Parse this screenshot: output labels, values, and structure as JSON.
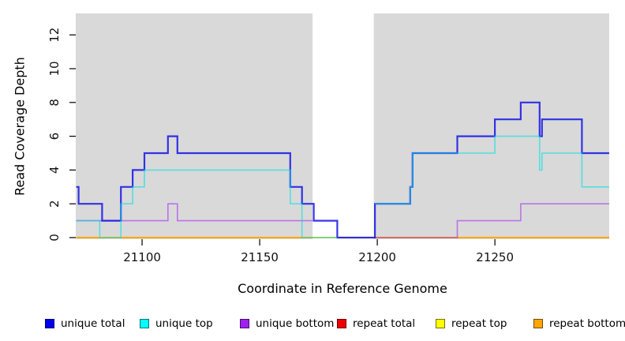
{
  "figure": {
    "x_axis_title": "Coordinate in Reference Genome",
    "y_axis_title": "Read Coverage Depth"
  },
  "legend": {
    "items": [
      {
        "label": "unique total",
        "color": "#0000EE"
      },
      {
        "label": "unique top",
        "color": "#00FFFF"
      },
      {
        "label": "unique bottom",
        "color": "#A020F0"
      },
      {
        "label": "repeat total",
        "color": "#EE0000"
      },
      {
        "label": "repeat top",
        "color": "#FFFF00"
      },
      {
        "label": "repeat bottom",
        "color": "#FFA500"
      }
    ]
  },
  "chart_data": {
    "type": "line",
    "subtype": "step-coverage",
    "title": "",
    "xlabel": "Coordinate in Reference Genome",
    "ylabel": "Read Coverage Depth",
    "xlim": [
      21071.8,
      21298.6
    ],
    "ylim": [
      0,
      13.3
    ],
    "x_ticks": [
      21100,
      21150,
      21200,
      21250
    ],
    "y_ticks": [
      0,
      2,
      4,
      6,
      8,
      10,
      12
    ],
    "grid": false,
    "legend_position": "bottom",
    "panel_color": "#D9D9D9",
    "shaded_regions": [
      {
        "name": "repeat-region-left",
        "from": 21071.8,
        "to": 21172.5
      },
      {
        "name": "repeat-region-right",
        "from": 21198.5,
        "to": 21298.6
      }
    ],
    "series": [
      {
        "key": "repeat_total",
        "name": "repeat total",
        "color": "#DD0000",
        "width": 1.5,
        "opacity": 1,
        "steps": [
          [
            21072,
            0
          ],
          [
            21299,
            0
          ]
        ]
      },
      {
        "key": "repeat_top",
        "name": "repeat top",
        "color": "#F0E400",
        "width": 1.5,
        "opacity": 1,
        "steps": [
          [
            21072,
            0
          ],
          [
            21299,
            0
          ]
        ]
      },
      {
        "key": "repeat_bottom",
        "name": "repeat bottom",
        "color": "#FFA500",
        "width": 1.8,
        "opacity": 1,
        "steps": [
          [
            21072,
            0
          ],
          [
            21172.5,
            null
          ],
          [
            21198.5,
            0
          ],
          [
            21299,
            0
          ]
        ]
      },
      {
        "key": "unique_bottom",
        "name": "unique bottom",
        "color": "#A020F0",
        "width": 1.6,
        "opacity": 0.55,
        "steps": [
          [
            21072,
            1
          ],
          [
            21111,
            2
          ],
          [
            21115,
            1
          ],
          [
            21172.5,
            null
          ],
          [
            21199,
            0
          ],
          [
            21234,
            1
          ],
          [
            21261,
            2
          ],
          [
            21299,
            2
          ]
        ]
      },
      {
        "key": "unique_total",
        "name": "unique total",
        "color": "#1414E6",
        "width": 2.2,
        "opacity": 0.85,
        "steps": [
          [
            21072,
            3
          ],
          [
            21073,
            2
          ],
          [
            21083,
            1
          ],
          [
            21091,
            3
          ],
          [
            21096,
            4
          ],
          [
            21101,
            5
          ],
          [
            21111,
            6
          ],
          [
            21115,
            5
          ],
          [
            21163,
            3
          ],
          [
            21168,
            2
          ],
          [
            21173,
            1
          ],
          [
            21183,
            0
          ],
          [
            21199,
            2
          ],
          [
            21214,
            3
          ],
          [
            21215,
            5
          ],
          [
            21234,
            6
          ],
          [
            21250,
            7
          ],
          [
            21261,
            8
          ],
          [
            21269,
            6
          ],
          [
            21270,
            7
          ],
          [
            21287,
            5
          ],
          [
            21299,
            5
          ]
        ]
      },
      {
        "key": "unique_top",
        "name": "unique top",
        "color": "#00E0E0",
        "width": 1.6,
        "opacity": 0.6,
        "steps": [
          [
            21072,
            1
          ],
          [
            21082,
            0
          ],
          [
            21091,
            2
          ],
          [
            21096,
            3
          ],
          [
            21101,
            4
          ],
          [
            21163,
            2
          ],
          [
            21168,
            0
          ],
          [
            21183,
            null
          ],
          [
            21199,
            2
          ],
          [
            21214,
            3
          ],
          [
            21215,
            5
          ],
          [
            21250,
            6
          ],
          [
            21269,
            4
          ],
          [
            21270,
            5
          ],
          [
            21287,
            3
          ],
          [
            21299,
            3
          ]
        ]
      }
    ]
  }
}
